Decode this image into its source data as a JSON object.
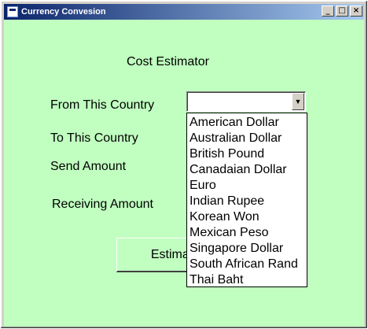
{
  "window": {
    "title": "Currency Convesion",
    "controls": {
      "minimize": "_",
      "maximize": "□",
      "close": "×"
    }
  },
  "form": {
    "heading": "Cost Estimator",
    "from_label": "From This Country",
    "to_label": "To This Country",
    "send_label": "Send Amount",
    "receive_label": "Receiving Amount",
    "from_value": "",
    "estimate_button": "Estimate"
  },
  "dropdown": {
    "items": [
      "American Dollar",
      "Australian Dollar",
      "British Pound",
      "Canadaian Dollar",
      "Euro",
      "Indian Rupee",
      "Korean Won",
      "Mexican Peso",
      "Singapore Dollar",
      "South African Rand",
      "Thai Baht"
    ]
  },
  "colors": {
    "client_background": "#c0ffc0",
    "titlebar_start": "#0a246a",
    "titlebar_end": "#a6caf0"
  },
  "icons": {
    "app": "app-window-icon",
    "combo_arrow": "chevron-down-icon"
  }
}
